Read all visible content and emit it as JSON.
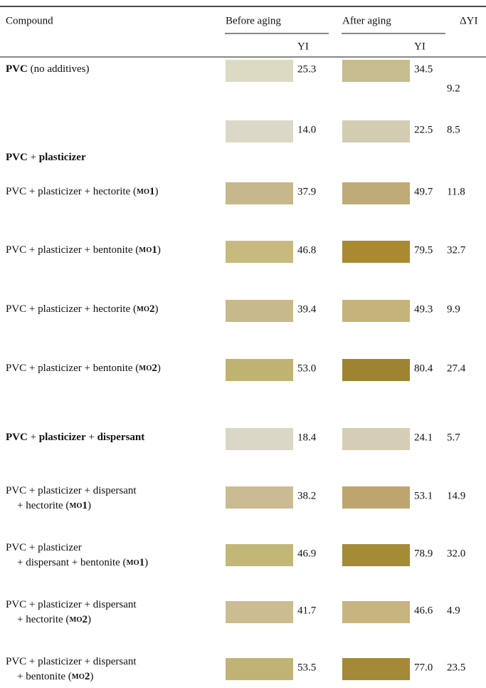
{
  "table": {
    "header": {
      "compound": "Compound",
      "before": "Before aging",
      "after": "After aging",
      "delta": "ΔYI",
      "before_yi": "YI",
      "after_yi": "YI"
    },
    "rows": [
      {
        "compound": [
          [
            {
              "text": "PVC",
              "bold": true
            },
            {
              "text": " (no additives)"
            }
          ]
        ],
        "before_color": "#dddac3",
        "before_yi": "25.3",
        "after_color": "#c7bb90",
        "after_yi": "34.5",
        "delta": "9.2"
      },
      {
        "compound": [
          [
            {
              "text": "PVC",
              "bold": true
            },
            {
              "text": " + "
            },
            {
              "text": "plasticizer",
              "bold": true
            }
          ]
        ],
        "before_color": "#dcd8c7",
        "before_yi": "14.0",
        "after_color": "#d3ccb1",
        "after_yi": "22.5",
        "delta": "8.5"
      },
      {
        "compound": [
          [
            {
              "text": "PVC + plasticizer + hectorite ("
            },
            {
              "text": "MO",
              "smallcaps": true
            },
            {
              "text": "1",
              "bold": true
            },
            {
              "text": ")"
            }
          ]
        ],
        "before_color": "#c6b88c",
        "before_yi": "37.9",
        "after_color": "#bfab77",
        "after_yi": "49.7",
        "delta": "11.8"
      },
      {
        "compound": [
          [
            {
              "text": "PVC + plasticizer + bentonite ("
            },
            {
              "text": "MO",
              "smallcaps": true
            },
            {
              "text": "1",
              "bold": true
            },
            {
              "text": ")"
            }
          ]
        ],
        "before_color": "#c8ba7f",
        "before_yi": "46.8",
        "after_color": "#a98a31",
        "after_yi": "79.5",
        "delta": "32.7"
      },
      {
        "compound": [
          [
            {
              "text": "PVC + plasticizer + hectorite ("
            },
            {
              "text": "MO",
              "smallcaps": true
            },
            {
              "text": "2",
              "bold": true
            },
            {
              "text": ")"
            }
          ]
        ],
        "before_color": "#c7b98c",
        "before_yi": "39.4",
        "after_color": "#c6b37c",
        "after_yi": "49.3",
        "delta": "9.9"
      },
      {
        "compound": [
          [
            {
              "text": "PVC + plasticizer + bentonite ("
            },
            {
              "text": "MO",
              "smallcaps": true
            },
            {
              "text": "2",
              "bold": true
            },
            {
              "text": ")"
            }
          ]
        ],
        "before_color": "#c0b371",
        "before_yi": "53.0",
        "after_color": "#9e8432",
        "after_yi": "80.4",
        "delta": "27.4"
      },
      {
        "compound": [
          [
            {
              "text": "PVC",
              "bold": true
            },
            {
              "text": " + "
            },
            {
              "text": "plasticizer",
              "bold": true
            },
            {
              "text": " + "
            },
            {
              "text": "dispersant",
              "bold": true
            }
          ]
        ],
        "before_color": "#dbd7c7",
        "before_yi": "18.4",
        "after_color": "#d5ceb4",
        "after_yi": "24.1",
        "delta": "5.7"
      },
      {
        "compound": [
          [
            {
              "text": "PVC + plasticizer + dispersant"
            }
          ],
          [
            {
              "text": "+ hectorite ("
            },
            {
              "text": "MO",
              "smallcaps": true
            },
            {
              "text": "1",
              "bold": true
            },
            {
              "text": ")"
            }
          ]
        ],
        "before_color": "#cabb93",
        "before_yi": "38.2",
        "after_color": "#bda56d",
        "after_yi": "53.1",
        "delta": "14.9"
      },
      {
        "compound": [
          [
            {
              "text": "PVC + plasticizer"
            }
          ],
          [
            {
              "text": "+ dispersant + bentonite ("
            },
            {
              "text": "MO",
              "smallcaps": true
            },
            {
              "text": "1",
              "bold": true
            },
            {
              "text": ")"
            }
          ]
        ],
        "before_color": "#c2b777",
        "before_yi": "46.9",
        "after_color": "#a48b36",
        "after_yi": "78.9",
        "delta": "32.0"
      },
      {
        "compound": [
          [
            {
              "text": "PVC + plasticizer + dispersant"
            }
          ],
          [
            {
              "text": "+ hectorite ("
            },
            {
              "text": "MO",
              "smallcaps": true
            },
            {
              "text": "2",
              "bold": true
            },
            {
              "text": ")"
            }
          ]
        ],
        "before_color": "#ccbc91",
        "before_yi": "41.7",
        "after_color": "#c8b47f",
        "after_yi": "46.6",
        "delta": "4.9"
      },
      {
        "compound": [
          [
            {
              "text": "PVC + plasticizer + dispersant"
            }
          ],
          [
            {
              "text": "+ bentonite ("
            },
            {
              "text": "MO",
              "smallcaps": true
            },
            {
              "text": "2",
              "bold": true
            },
            {
              "text": ")"
            }
          ]
        ],
        "before_color": "#c0b375",
        "before_yi": "53.5",
        "after_color": "#a38938",
        "after_yi": "77.0",
        "delta": "23.5"
      }
    ]
  }
}
